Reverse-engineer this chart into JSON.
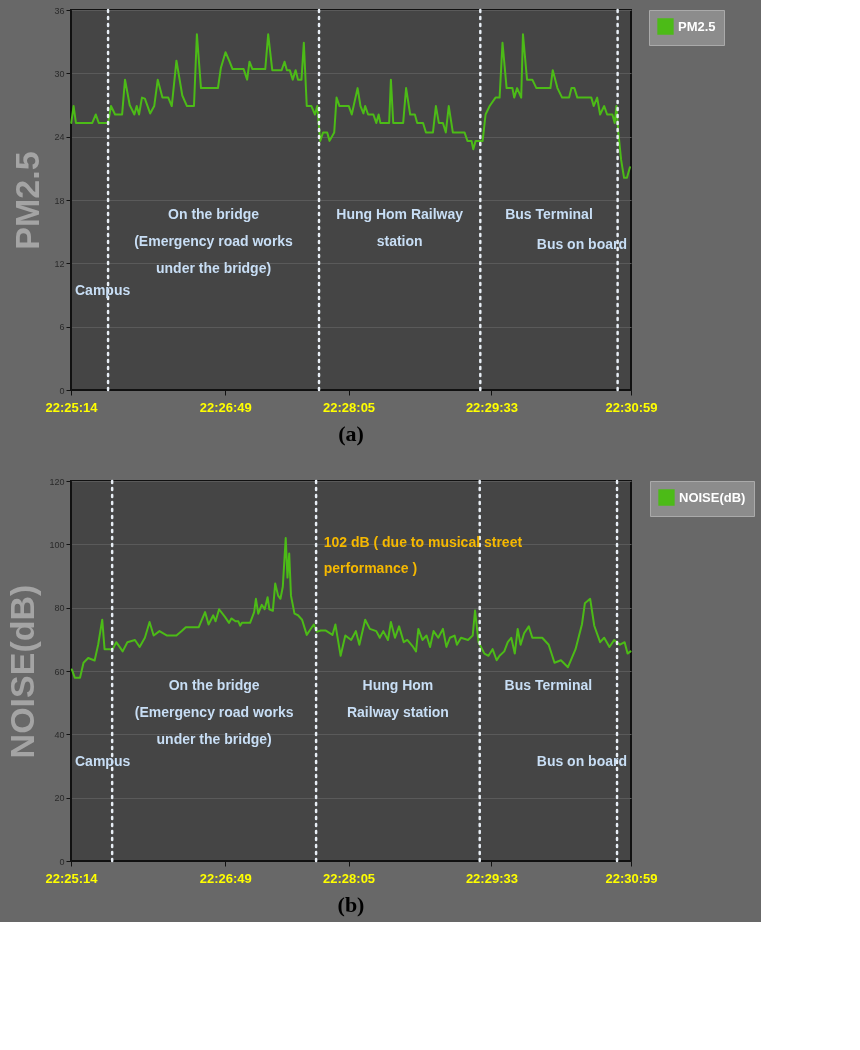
{
  "chart_data": [
    {
      "type": "line",
      "title": "(a)",
      "ylabel": "PM2.5",
      "grid": "y",
      "legend": "top right",
      "xlim": [
        22.420556,
        22.516389
      ],
      "xticks": [
        {
          "value": 22.420556,
          "label": "22:25:14"
        },
        {
          "value": 22.446944,
          "label": "22:26:49"
        },
        {
          "value": 22.468056,
          "label": "22:28:05"
        },
        {
          "value": 22.4925,
          "label": "22:29:33"
        },
        {
          "value": 22.516389,
          "label": "22:30:59"
        }
      ],
      "ylim": [
        0,
        36
      ],
      "yticks": [
        0,
        6,
        12,
        18,
        24,
        30,
        36
      ],
      "series": [
        {
          "name": "PM2.5",
          "color": "#4cbb17",
          "line_style": "solid",
          "x": [
            22.4206,
            22.421,
            22.4214,
            22.4242,
            22.4248,
            22.4253,
            22.4269,
            22.4274,
            22.4281,
            22.4293,
            22.4298,
            22.4306,
            22.4314,
            22.4318,
            22.4322,
            22.4327,
            22.4332,
            22.4341,
            22.4348,
            22.4354,
            22.4362,
            22.4372,
            22.4378,
            22.4386,
            22.4396,
            22.4404,
            22.4416,
            22.4421,
            22.4428,
            22.4457,
            22.4462,
            22.447,
            22.4477,
            22.4482,
            22.4501,
            22.4507,
            22.4511,
            22.4516,
            22.4538,
            22.4543,
            22.455,
            22.4566,
            22.4571,
            22.4575,
            22.458,
            22.4585,
            22.459,
            22.4594,
            22.46,
            22.4604,
            22.4609,
            22.4617,
            22.4623,
            22.4627,
            22.4632,
            22.4637,
            22.4644,
            22.4648,
            22.4656,
            22.466,
            22.4665,
            22.467,
            22.4681,
            22.4686,
            22.4696,
            22.4701,
            22.4706,
            22.4709,
            22.4714,
            22.4723,
            22.4728,
            22.4732,
            22.4735,
            22.475,
            22.4753,
            22.4757,
            22.4774,
            22.4779,
            22.4786,
            22.4794,
            22.4798,
            22.4808,
            22.4813,
            22.4825,
            22.483,
            22.4835,
            22.4842,
            22.4847,
            22.4852,
            22.4859,
            22.4879,
            22.4884,
            22.4891,
            22.4894,
            22.4898,
            22.491,
            22.4915,
            22.4922,
            22.4932,
            22.4939,
            22.4944,
            22.4951,
            22.4961,
            22.4964,
            22.4969,
            22.4976,
            22.4979,
            22.4986,
            22.4995,
            22.5002,
            22.5026,
            22.503,
            22.5038,
            22.5046,
            22.5058,
            22.5062,
            22.5067,
            22.5072,
            22.5096,
            22.51,
            22.5106,
            22.5111,
            22.5118,
            22.5123,
            22.5132,
            22.5136,
            22.5139,
            22.5142,
            22.5147,
            22.5152,
            22.5157,
            22.5162
          ],
          "values": [
            25.3,
            26.9,
            25.3,
            25.3,
            26.1,
            25.3,
            25.3,
            26.9,
            26.1,
            26.1,
            29.4,
            27.0,
            26.1,
            26.9,
            26.1,
            27.7,
            27.6,
            26.2,
            26.9,
            29.4,
            27.7,
            27.7,
            26.9,
            31.2,
            27.9,
            26.9,
            26.9,
            33.7,
            28.6,
            28.6,
            30.5,
            32.0,
            31.1,
            30.4,
            30.4,
            29.4,
            31.1,
            30.4,
            30.4,
            33.7,
            30.3,
            30.3,
            31.1,
            30.3,
            30.3,
            29.4,
            30.3,
            29.4,
            29.4,
            32.9,
            26.9,
            26.9,
            26.1,
            26.9,
            23.6,
            24.4,
            24.4,
            23.6,
            24.4,
            27.7,
            26.9,
            26.9,
            26.9,
            26.1,
            28.6,
            26.9,
            26.2,
            26.9,
            26.1,
            26.1,
            25.3,
            26.1,
            25.3,
            25.3,
            29.4,
            25.3,
            25.3,
            28.6,
            26.1,
            26.1,
            25.3,
            25.3,
            24.4,
            24.4,
            26.9,
            25.3,
            25.3,
            24.4,
            26.9,
            24.4,
            24.4,
            23.6,
            23.6,
            22.8,
            23.6,
            23.6,
            26.1,
            26.9,
            27.7,
            27.7,
            32.9,
            28.6,
            28.6,
            27.7,
            28.6,
            27.7,
            33.7,
            29.4,
            29.4,
            28.6,
            28.6,
            30.3,
            28.6,
            27.7,
            27.7,
            28.6,
            28.6,
            27.7,
            27.7,
            26.9,
            27.7,
            26.1,
            26.9,
            26.1,
            26.1,
            25.3,
            26.9,
            24.5,
            21.8,
            20.1,
            20.1,
            21.1
          ]
        }
      ],
      "ref_lines": [
        {
          "axis": "x",
          "value": 22.4269,
          "color": "#e8eef5",
          "line_style": "dotted"
        },
        {
          "axis": "x",
          "value": 22.463,
          "color": "#e8eef5",
          "line_style": "dotted"
        },
        {
          "axis": "x",
          "value": 22.4906,
          "color": "#e8eef5",
          "line_style": "dotted"
        },
        {
          "axis": "x",
          "value": 22.5141,
          "color": "#e8eef5",
          "line_style": "dotted"
        }
      ],
      "annotations": [
        "Campus",
        "On the bridge\n(Emergency road works\nunder the bridge)",
        "Hung Hom Railway\nstation",
        "Bus Terminal",
        "Bus on board"
      ]
    },
    {
      "type": "line",
      "title": "(b)",
      "ylabel": "NOISE(dB)",
      "grid": "y",
      "legend": "top right",
      "xlim": [
        22.420556,
        22.516389
      ],
      "xticks": [
        {
          "value": 22.420556,
          "label": "22:25:14"
        },
        {
          "value": 22.446944,
          "label": "22:26:49"
        },
        {
          "value": 22.468056,
          "label": "22:28:05"
        },
        {
          "value": 22.4925,
          "label": "22:29:33"
        },
        {
          "value": 22.516389,
          "label": "22:30:59"
        }
      ],
      "ylim": [
        0,
        120
      ],
      "yticks": [
        0,
        20,
        40,
        60,
        80,
        100,
        120
      ],
      "series": [
        {
          "name": "NOISE(dB)",
          "color": "#4cbb17",
          "line_style": "solid",
          "x": [
            22.4207,
            22.4212,
            22.4221,
            22.4227,
            22.4235,
            22.4246,
            22.4252,
            22.4259,
            22.4263,
            22.4277,
            22.4283,
            22.4294,
            22.4302,
            22.4315,
            22.4323,
            22.4332,
            22.434,
            22.4347,
            22.4357,
            22.437,
            22.4386,
            22.4395,
            22.4402,
            22.4424,
            22.4435,
            22.4441,
            22.4449,
            22.4453,
            22.4459,
            22.4469,
            22.4476,
            22.448,
            22.4487,
            22.4492,
            22.4495,
            22.4498,
            22.4512,
            22.4519,
            22.4522,
            22.4526,
            22.4532,
            22.4537,
            22.4542,
            22.4545,
            22.4551,
            22.4555,
            22.456,
            22.4564,
            22.4568,
            22.4573,
            22.4576,
            22.4579,
            22.4582,
            22.4588,
            22.4594,
            22.4601,
            22.4609,
            22.4614,
            22.4621,
            22.4626,
            22.4633,
            22.4641,
            22.4653,
            22.4658,
            22.4667,
            22.4675,
            22.4685,
            22.4693,
            22.4699,
            22.4709,
            22.4717,
            22.4728,
            22.4734,
            22.474,
            22.4748,
            22.4753,
            22.476,
            22.4767,
            22.4775,
            22.4781,
            22.4791,
            22.4796,
            22.48,
            22.4807,
            22.4814,
            22.482,
            22.4826,
            22.4834,
            22.4842,
            22.4848,
            22.4854,
            22.4862,
            22.4866,
            22.4873,
            22.4885,
            22.4893,
            22.4897,
            22.4903,
            22.4913,
            22.492,
            22.4927,
            22.4934,
            22.4939,
            22.4947,
            22.4953,
            22.4959,
            22.4965,
            22.497,
            22.4975,
            22.4981,
            22.4989,
            22.4995,
            22.5012,
            22.5023,
            22.5033,
            22.5044,
            22.5056,
            22.5069,
            22.508,
            22.5085,
            22.5094,
            22.5101,
            22.5111,
            22.5118,
            22.5127,
            22.5135,
            22.5145,
            22.5153,
            22.5158,
            22.5163
          ],
          "values": [
            60.5,
            57.9,
            57.9,
            62.6,
            64.1,
            63.3,
            68.3,
            76.2,
            66.9,
            66.9,
            69.1,
            66.2,
            69.1,
            69.8,
            67.6,
            70.5,
            75.5,
            71.2,
            72.6,
            71.2,
            71.2,
            72.6,
            73.8,
            73.8,
            78.6,
            74.7,
            77.6,
            75.7,
            79.5,
            77.1,
            75.2,
            76.6,
            75.7,
            75.7,
            74.3,
            75.2,
            75.2,
            78.6,
            82.8,
            78.1,
            80.9,
            79.5,
            83.3,
            79.5,
            79.0,
            87.6,
            83.8,
            82.8,
            86.6,
            102,
            89.5,
            97.1,
            83.8,
            78.1,
            77.6,
            76.2,
            71.4,
            72.8,
            74.7,
            72.4,
            72.8,
            72.8,
            71.4,
            74.7,
            64.8,
            71.2,
            69.8,
            72.6,
            68.3,
            76.2,
            73.3,
            72.6,
            70.5,
            72.6,
            69.8,
            75.5,
            70.5,
            74.1,
            69.1,
            69.8,
            67.6,
            66.2,
            73.3,
            69.8,
            71.2,
            67.6,
            72.6,
            70.5,
            73.3,
            67.6,
            70.5,
            71.2,
            68.3,
            70.5,
            69.8,
            71.2,
            79.1,
            69.1,
            65.5,
            64.8,
            66.9,
            63.4,
            64.8,
            66.2,
            69.1,
            70.5,
            65.5,
            73.3,
            68.3,
            71.9,
            74.1,
            70.5,
            70.5,
            68.3,
            62.6,
            63.4,
            61.2,
            66.9,
            74.8,
            81.4,
            82.8,
            74.3,
            69.1,
            70.5,
            67.6,
            69.8,
            68.3,
            69.1,
            65.5,
            66.2
          ]
        }
      ],
      "ref_lines": [
        {
          "axis": "x",
          "value": 22.4276,
          "color": "#e8eef5",
          "line_style": "dotted"
        },
        {
          "axis": "x",
          "value": 22.4625,
          "color": "#e8eef5",
          "line_style": "dotted"
        },
        {
          "axis": "x",
          "value": 22.4905,
          "color": "#e8eef5",
          "line_style": "dotted"
        },
        {
          "axis": "x",
          "value": 22.514,
          "color": "#e8eef5",
          "line_style": "dotted"
        }
      ],
      "annotations": [
        {
          "text": "102 dB ( due to musical street\nperformance )",
          "x": 22.4573,
          "y": 102
        },
        "Campus",
        "On the bridge\n(Emergency road works\nunder the bridge)",
        "Hung Hom\nRailway station",
        "Bus Terminal",
        "Bus on board"
      ]
    }
  ]
}
